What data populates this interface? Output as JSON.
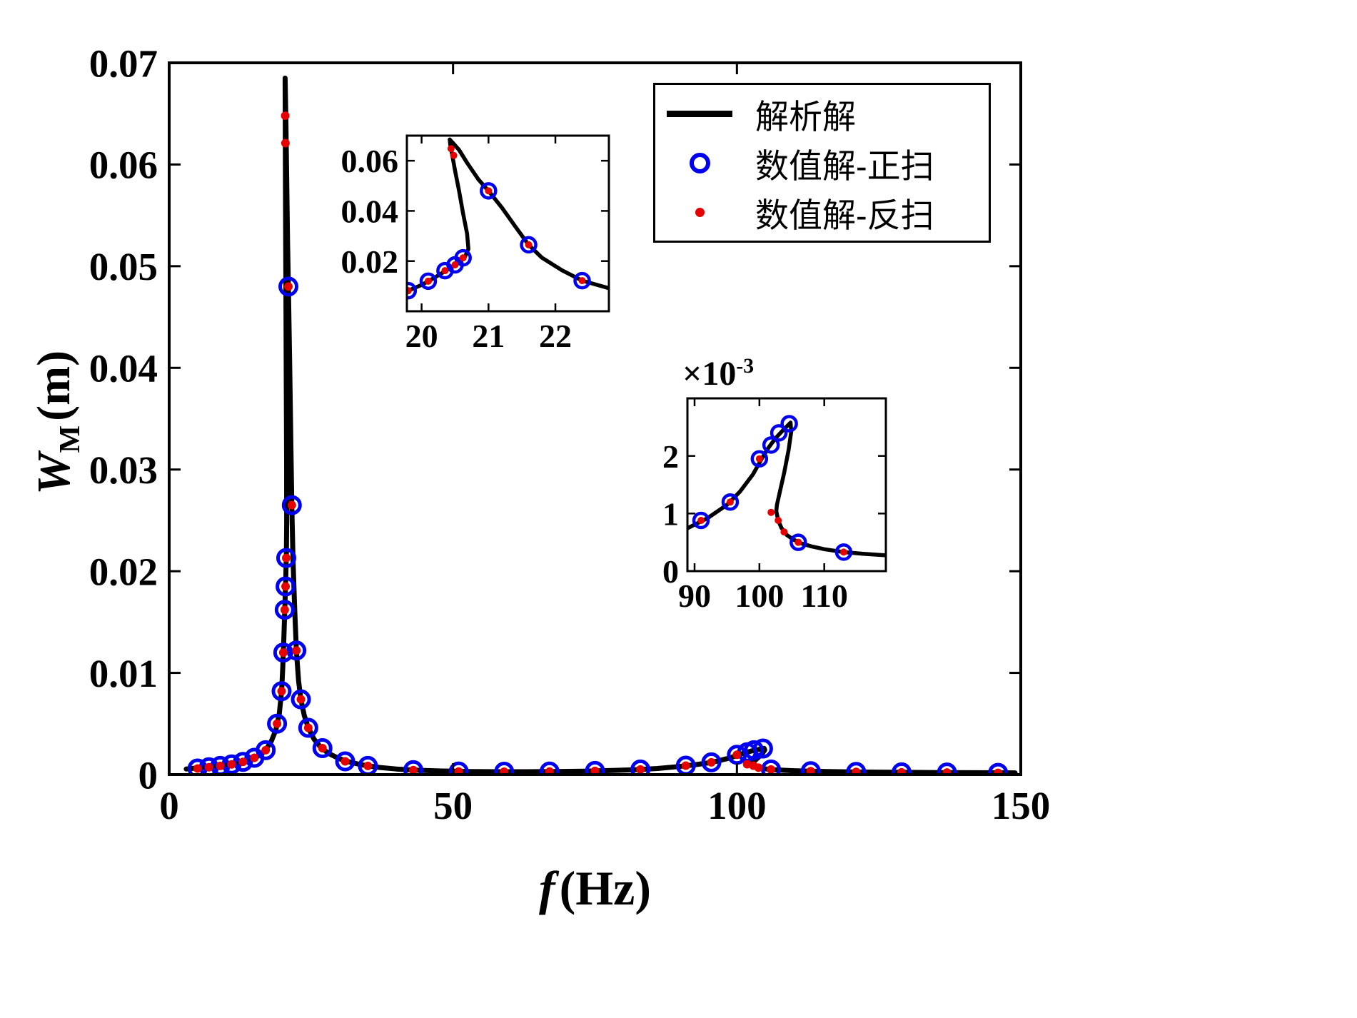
{
  "figure": {
    "background": "#ffffff"
  },
  "labels": {
    "xlabel_italic": "f",
    "xlabel_rest": "(Hz)",
    "ylabel_italic": "W",
    "ylabel_sub": "M",
    "ylabel_rest": "(m)"
  },
  "chart_data": {
    "type": "line+scatter",
    "legend_position": "top-right",
    "grid": false,
    "series": [
      {
        "name": "解析解",
        "kind": "line",
        "color": "#000000",
        "points": [
          [
            3,
            0.00055
          ],
          [
            6,
            0.0007
          ],
          [
            9,
            0.00085
          ],
          [
            12,
            0.0011
          ],
          [
            14,
            0.0014
          ],
          [
            16,
            0.0019
          ],
          [
            17,
            0.0024
          ],
          [
            18,
            0.0033
          ],
          [
            18.8,
            0.0044
          ],
          [
            19.4,
            0.006
          ],
          [
            19.8,
            0.0082
          ],
          [
            20,
            0.0105
          ],
          [
            20.2,
            0.0135
          ],
          [
            20.4,
            0.0168
          ],
          [
            20.55,
            0.0195
          ],
          [
            20.65,
            0.0218
          ],
          [
            20.7,
            0.0248
          ],
          [
            20.68,
            0.031
          ],
          [
            20.62,
            0.039
          ],
          [
            20.56,
            0.048
          ],
          [
            20.5,
            0.056
          ],
          [
            20.46,
            0.062
          ],
          [
            20.43,
            0.0662
          ],
          [
            20.42,
            0.0685
          ],
          [
            20.47,
            0.067
          ],
          [
            20.56,
            0.0643
          ],
          [
            20.68,
            0.0592
          ],
          [
            20.85,
            0.0525
          ],
          [
            21,
            0.048
          ],
          [
            21.2,
            0.0413
          ],
          [
            21.4,
            0.0338
          ],
          [
            21.6,
            0.0265
          ],
          [
            21.8,
            0.0213
          ],
          [
            22.1,
            0.0163
          ],
          [
            22.4,
            0.0122
          ],
          [
            22.8,
            0.0092
          ],
          [
            23.2,
            0.0074
          ],
          [
            23.8,
            0.0058
          ],
          [
            24.5,
            0.0046
          ],
          [
            25.5,
            0.0035
          ],
          [
            26.5,
            0.0028
          ],
          [
            28,
            0.0021
          ],
          [
            30,
            0.00155
          ],
          [
            32,
            0.0012
          ],
          [
            34,
            0.00095
          ],
          [
            37,
            0.0007
          ],
          [
            40,
            0.00055
          ],
          [
            44,
            0.00042
          ],
          [
            48,
            0.00035
          ],
          [
            53,
            0.0003
          ],
          [
            58,
            0.00028
          ],
          [
            63,
            0.00028
          ],
          [
            68,
            0.0003
          ],
          [
            73,
            0.00034
          ],
          [
            78,
            0.0004
          ],
          [
            82,
            0.00048
          ],
          [
            86,
            0.0006
          ],
          [
            89,
            0.00075
          ],
          [
            92,
            0.00092
          ],
          [
            95,
            0.00115
          ],
          [
            97,
            0.00138
          ],
          [
            99,
            0.00168
          ],
          [
            100.5,
            0.00198
          ],
          [
            101.5,
            0.00216
          ],
          [
            102.5,
            0.00231
          ],
          [
            103.5,
            0.00243
          ],
          [
            104.3,
            0.00252
          ],
          [
            104.8,
            0.00258
          ],
          [
            104.9,
            0.00242
          ],
          [
            104.5,
            0.0021
          ],
          [
            103.8,
            0.0017
          ],
          [
            103.1,
            0.00135
          ],
          [
            102.7,
            0.00115
          ],
          [
            102.6,
            0.00104
          ],
          [
            102.9,
            0.00088
          ],
          [
            103.4,
            0.00075
          ],
          [
            104.2,
            0.00063
          ],
          [
            105.2,
            0.00055
          ],
          [
            106.5,
            0.00048
          ],
          [
            108,
            0.00043
          ],
          [
            110,
            0.00038
          ],
          [
            113,
            0.00033
          ],
          [
            116,
            0.0003
          ],
          [
            120,
            0.00027
          ],
          [
            125,
            0.00024
          ],
          [
            130,
            0.00022
          ],
          [
            136,
            0.0002
          ],
          [
            142,
            0.00018
          ],
          [
            149,
            0.00017
          ]
        ]
      },
      {
        "name": "数值解-正扫",
        "kind": "scatter-open-circle",
        "color": "#0000ee",
        "points": [
          [
            5,
            0.0006
          ],
          [
            7,
            0.00072
          ],
          [
            9,
            0.00085
          ],
          [
            11,
            0.001
          ],
          [
            13,
            0.00125
          ],
          [
            15,
            0.00165
          ],
          [
            17,
            0.0024
          ],
          [
            19,
            0.005
          ],
          [
            19.8,
            0.0082
          ],
          [
            20.1,
            0.012
          ],
          [
            20.35,
            0.0162
          ],
          [
            20.5,
            0.0185
          ],
          [
            20.62,
            0.0213
          ],
          [
            21,
            0.048
          ],
          [
            21.6,
            0.0265
          ],
          [
            22.4,
            0.0122
          ],
          [
            23.2,
            0.0074
          ],
          [
            24.5,
            0.0046
          ],
          [
            27,
            0.0026
          ],
          [
            31,
            0.0013
          ],
          [
            35,
            0.00085
          ],
          [
            43,
            0.00044
          ],
          [
            51,
            0.0003
          ],
          [
            59,
            0.00028
          ],
          [
            67,
            0.0003
          ],
          [
            75,
            0.00036
          ],
          [
            83,
            0.0005
          ],
          [
            91,
            0.00088
          ],
          [
            95.5,
            0.0012
          ],
          [
            100,
            0.00195
          ],
          [
            101.8,
            0.00219
          ],
          [
            103,
            0.0024
          ],
          [
            104.6,
            0.00256
          ],
          [
            106,
            0.0005
          ],
          [
            113,
            0.00033
          ],
          [
            121,
            0.00026
          ],
          [
            129,
            0.00022
          ],
          [
            137,
            0.0002
          ],
          [
            146,
            0.00017
          ]
        ]
      },
      {
        "name": "数值解-反扫",
        "kind": "scatter-dot",
        "color": "#e60000",
        "points": [
          [
            5,
            0.0006
          ],
          [
            7,
            0.00072
          ],
          [
            9,
            0.00085
          ],
          [
            11,
            0.001
          ],
          [
            13,
            0.00125
          ],
          [
            15,
            0.00165
          ],
          [
            17,
            0.0024
          ],
          [
            19,
            0.005
          ],
          [
            19.8,
            0.0082
          ],
          [
            20.1,
            0.012
          ],
          [
            20.35,
            0.0162
          ],
          [
            20.5,
            0.0185
          ],
          [
            20.62,
            0.0213
          ],
          [
            20.44,
            0.0648
          ],
          [
            20.48,
            0.0621
          ],
          [
            21,
            0.048
          ],
          [
            21.6,
            0.0265
          ],
          [
            22.4,
            0.0122
          ],
          [
            23.2,
            0.0074
          ],
          [
            24.5,
            0.0046
          ],
          [
            27,
            0.0026
          ],
          [
            31,
            0.0013
          ],
          [
            35,
            0.00085
          ],
          [
            43,
            0.00044
          ],
          [
            51,
            0.0003
          ],
          [
            59,
            0.00028
          ],
          [
            67,
            0.0003
          ],
          [
            75,
            0.00036
          ],
          [
            83,
            0.0005
          ],
          [
            91,
            0.00088
          ],
          [
            95.5,
            0.0012
          ],
          [
            100,
            0.00195
          ],
          [
            101.8,
            0.00102
          ],
          [
            102.9,
            0.00088
          ],
          [
            103.8,
            0.00068
          ],
          [
            106,
            0.0005
          ],
          [
            113,
            0.00033
          ],
          [
            121,
            0.00026
          ],
          [
            129,
            0.00022
          ],
          [
            137,
            0.0002
          ],
          [
            146,
            0.00017
          ]
        ]
      }
    ],
    "axes": {
      "main": {
        "xlabel": "f (Hz)",
        "ylabel": "W_M (m)",
        "xlim": [
          0,
          150
        ],
        "ylim": [
          0,
          0.07
        ],
        "xticks": [
          {
            "v": 0,
            "label": "0"
          },
          {
            "v": 50,
            "label": "50"
          },
          {
            "v": 100,
            "label": "100"
          },
          {
            "v": 150,
            "label": "150"
          }
        ],
        "yticks": [
          {
            "v": 0,
            "label": "0"
          },
          {
            "v": 0.01,
            "label": "0.01"
          },
          {
            "v": 0.02,
            "label": "0.02"
          },
          {
            "v": 0.03,
            "label": "0.03"
          },
          {
            "v": 0.04,
            "label": "0.04"
          },
          {
            "v": 0.05,
            "label": "0.05"
          },
          {
            "v": 0.06,
            "label": "0.06"
          },
          {
            "v": 0.07,
            "label": "0.07"
          }
        ]
      },
      "inset1": {
        "xlim": [
          19.78,
          22.8
        ],
        "ylim": [
          0,
          0.07
        ],
        "xticks": [
          {
            "v": 20,
            "label": "20"
          },
          {
            "v": 21,
            "label": "21"
          },
          {
            "v": 22,
            "label": "22"
          }
        ],
        "yticks": [
          {
            "v": 0.02,
            "label": "0.02"
          },
          {
            "v": 0.04,
            "label": "0.04"
          },
          {
            "v": 0.06,
            "label": "0.06"
          }
        ]
      },
      "inset2": {
        "xlim": [
          88.9,
          119.5
        ],
        "ylim": [
          0,
          0.003
        ],
        "xticks": [
          {
            "v": 90,
            "label": "90"
          },
          {
            "v": 100,
            "label": "100"
          },
          {
            "v": 110,
            "label": "110"
          }
        ],
        "yticks": [
          {
            "v": 0,
            "label": "0"
          },
          {
            "v": 0.001,
            "label": "1"
          },
          {
            "v": 0.002,
            "label": "2"
          }
        ],
        "multiplier_base": "×10",
        "multiplier_exp": "-3"
      }
    }
  }
}
